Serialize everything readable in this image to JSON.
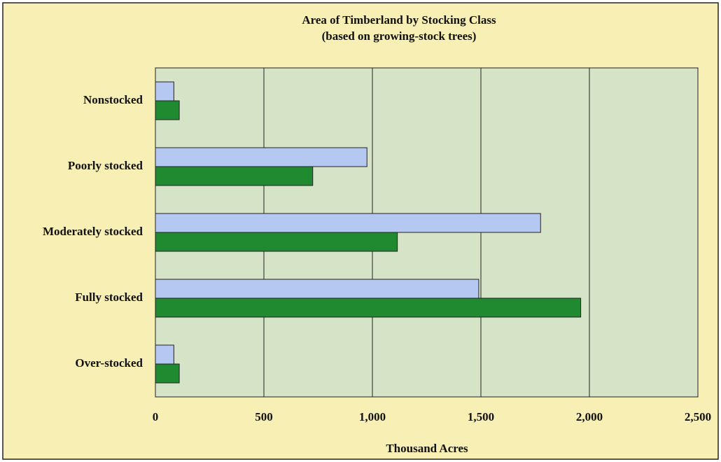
{
  "chart_data": {
    "type": "hbar",
    "title": "Area of Timberland by Stocking Class",
    "subtitle": "(based on growing-stock trees)",
    "x_label": "Thousand Acres",
    "categories": [
      "Nonstocked",
      "Poorly stocked",
      "Moderately stocked",
      "Fully stocked",
      "Over-stocked"
    ],
    "series": [
      {
        "color": "#b4c8f2",
        "values": [
          85,
          975,
          1775,
          1490,
          85
        ]
      },
      {
        "color": "#1f8a30",
        "values": [
          110,
          725,
          1115,
          1960,
          110
        ]
      }
    ],
    "xlim": [
      0,
      2500
    ],
    "xticks": [
      0,
      500,
      {
        "value": 1000,
        "label": "1,000"
      },
      {
        "value": 1500,
        "label": "1,500"
      },
      {
        "value": 2000,
        "label": "2,000"
      },
      {
        "value": 2500,
        "label": "2,500"
      }
    ],
    "grid": true
  }
}
